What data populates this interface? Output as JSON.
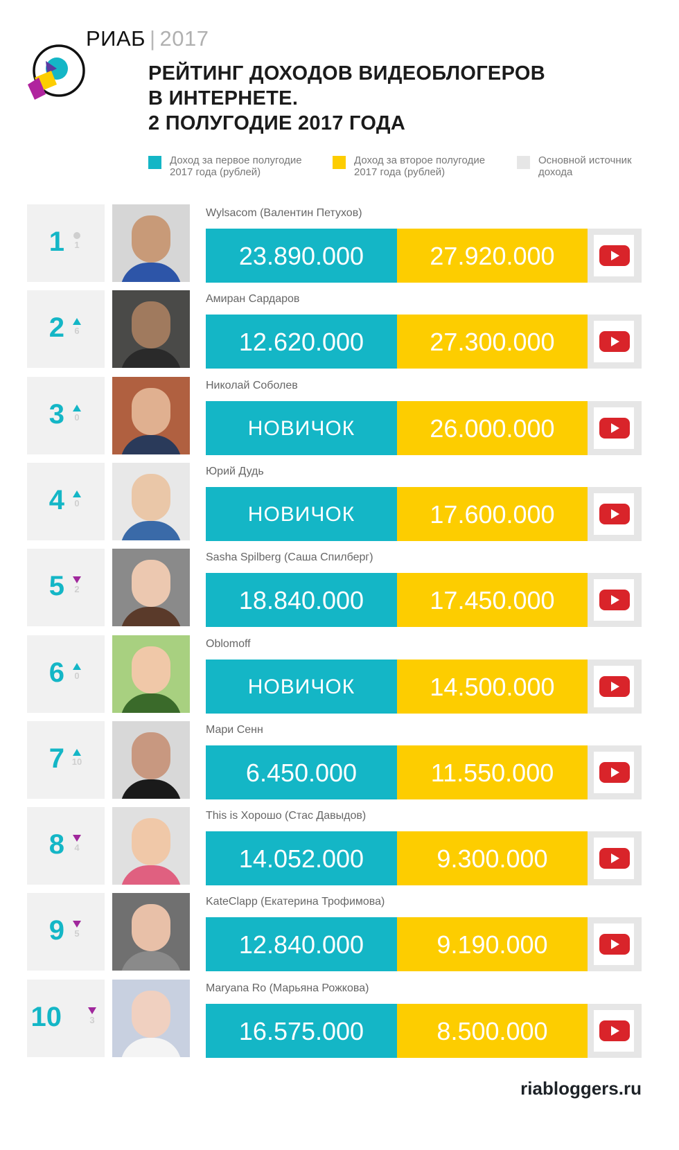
{
  "header": {
    "brand": "РИАБ",
    "separator": "|",
    "year": "2017",
    "title_lines": [
      "РЕЙТИНГ ДОХОДОВ ВИДЕОБЛОГЕРОВ",
      "В ИНТЕРНЕТЕ.",
      "2 ПОЛУГОДИЕ 2017 ГОДА"
    ]
  },
  "legend": [
    {
      "label": "Доход за первое полугодие 2017 года (рублей)",
      "color": "#14b6c6"
    },
    {
      "label": "Доход за второе полугодие 2017 года (рублей)",
      "color": "#fdcd00"
    },
    {
      "label": "Основной источник дохода",
      "color": "#e6e6e6"
    }
  ],
  "colors": {
    "accent_teal": "#14b6c6",
    "accent_yellow": "#fdcd00",
    "down_purple": "#a0289c",
    "neutral_gray": "#cfcfcf",
    "youtube_red": "#d9242a"
  },
  "rows": [
    {
      "rank": "1",
      "change_dir": "same",
      "change": "1",
      "name": "Wylsacom (Валентин Петухов)",
      "first_half": "23.890.000",
      "second_half": "27.920.000",
      "source": "youtube-icon"
    },
    {
      "rank": "2",
      "change_dir": "up",
      "change": "6",
      "name": "Амиран Сардаров",
      "first_half": "12.620.000",
      "second_half": "27.300.000",
      "source": "youtube-icon"
    },
    {
      "rank": "3",
      "change_dir": "up",
      "change": "0",
      "name": "Николай Соболев",
      "first_half": "НОВИЧОК",
      "second_half": "26.000.000",
      "source": "youtube-icon"
    },
    {
      "rank": "4",
      "change_dir": "up",
      "change": "0",
      "name": "Юрий Дудь",
      "first_half": "НОВИЧОК",
      "second_half": "17.600.000",
      "source": "youtube-icon"
    },
    {
      "rank": "5",
      "change_dir": "down",
      "change": "2",
      "name": "Sasha Spilberg (Саша Спилберг)",
      "first_half": "18.840.000",
      "second_half": "17.450.000",
      "source": "youtube-icon"
    },
    {
      "rank": "6",
      "change_dir": "up",
      "change": "0",
      "name": "Oblomoff",
      "first_half": "НОВИЧОК",
      "second_half": "14.500.000",
      "source": "youtube-icon"
    },
    {
      "rank": "7",
      "change_dir": "up",
      "change": "10",
      "name": "Мари Сенн",
      "first_half": "6.450.000",
      "second_half": "11.550.000",
      "source": "youtube-icon"
    },
    {
      "rank": "8",
      "change_dir": "down",
      "change": "4",
      "name": "This is Хорошо (Стас Давыдов)",
      "first_half": "14.052.000",
      "second_half": "9.300.000",
      "source": "youtube-icon"
    },
    {
      "rank": "9",
      "change_dir": "down",
      "change": "5",
      "name": "KateClapp (Екатерина Трофимова)",
      "first_half": "12.840.000",
      "second_half": "9.190.000",
      "source": "youtube-icon"
    },
    {
      "rank": "10",
      "change_dir": "down",
      "change": "3",
      "name": "Maryana Ro (Марьяна Рожкова)",
      "first_half": "16.575.000",
      "second_half": "8.500.000",
      "source": "youtube-icon"
    }
  ],
  "footer": {
    "site": "riabloggers.ru"
  }
}
